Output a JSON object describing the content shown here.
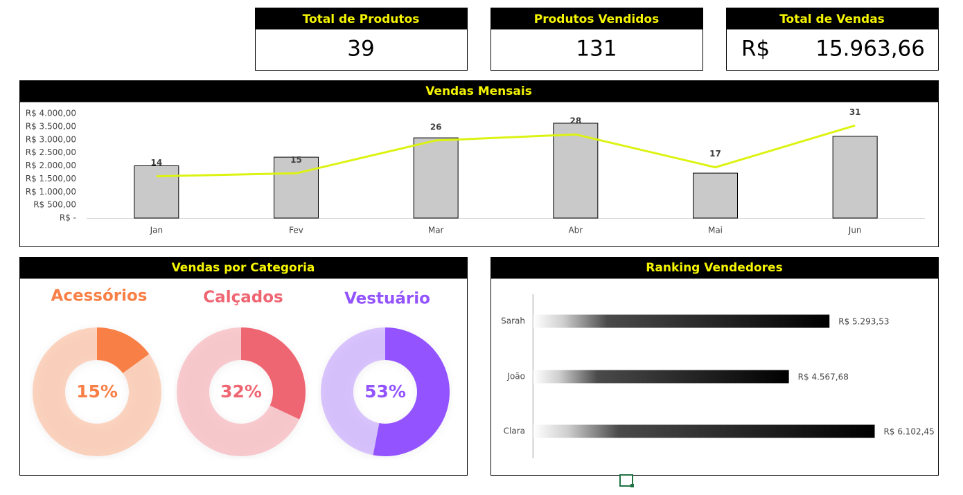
{
  "kpis": [
    {
      "title": "Total de Produtos",
      "value": "39"
    },
    {
      "title": "Produtos Vendidos",
      "value": "131"
    },
    {
      "title": "Total de Vendas",
      "currency": "R$",
      "value": "15.963,66"
    }
  ],
  "chart_data": [
    {
      "type": "bar",
      "title": "Vendas Mensais",
      "categories": [
        "Jan",
        "Fev",
        "Mar",
        "Abr",
        "Mai",
        "Jun"
      ],
      "series": [
        {
          "color": "#c9c9c9",
          "values": [
            2000,
            2330,
            3070,
            3630,
            1720,
            3130
          ]
        },
        {
          "type": "line",
          "axis": "y2",
          "color": "#dcf312",
          "values": [
            14,
            15,
            26,
            28,
            17,
            31
          ]
        }
      ],
      "ylim": [
        0,
        4000
      ],
      "yticks": [
        {
          "value": 0,
          "label": "R$ -"
        },
        {
          "value": 500,
          "label": "R$ 500,00"
        },
        {
          "value": 1000,
          "label": "R$ 1.000,00"
        },
        {
          "value": 1500,
          "label": "R$ 1.500,00"
        },
        {
          "value": 2000,
          "label": "R$ 2.000,00"
        },
        {
          "value": 2500,
          "label": "R$ 2.500,00"
        },
        {
          "value": 3000,
          "label": "R$ 3.000,00"
        },
        {
          "value": 3500,
          "label": "R$ 3.500,00"
        },
        {
          "value": 4000,
          "label": "R$ 4.000,00"
        }
      ],
      "y2lim": [
        0,
        35
      ],
      "grid": false
    },
    {
      "type": "donut",
      "title": "Vendas por Categoria",
      "categories": [
        "Acessórios",
        "Calçados",
        "Vestuário"
      ],
      "values": [
        15,
        32,
        53
      ],
      "value_labels": [
        "15%",
        "32%",
        "53%"
      ],
      "colors": [
        "#f88047",
        "#ef6673",
        "#9354ff"
      ]
    },
    {
      "type": "hbar",
      "title": "Ranking Vendedores",
      "categories": [
        "Sarah",
        "João",
        "Clara"
      ],
      "values": [
        5293.53,
        4567.68,
        6102.45
      ],
      "value_labels": [
        "R$ 5.293,53",
        "R$ 4.567,68",
        "R$ 6.102,45"
      ],
      "xlim": [
        0,
        7000
      ],
      "color": "#000000"
    }
  ]
}
